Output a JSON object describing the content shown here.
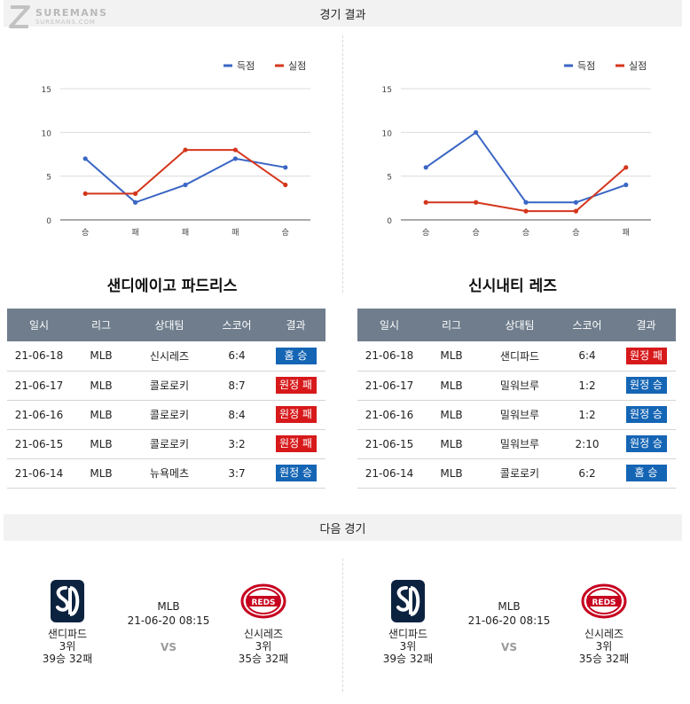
{
  "site": {
    "brand": "SUREMANS",
    "domain": "SUREMANS.COM"
  },
  "sections": {
    "results_title": "경기 결과",
    "next_title": "다음 경기"
  },
  "legend": {
    "scored": "득점",
    "conceded": "실점"
  },
  "colors": {
    "scored": "#3a66c4",
    "conceded": "#d4361c",
    "win": "#1565b5",
    "loss": "#d7191b",
    "header": "#6f7d8c"
  },
  "chart_data": [
    {
      "type": "line",
      "categories": [
        "승",
        "패",
        "패",
        "패",
        "승"
      ],
      "series": [
        {
          "name": "득점",
          "values": [
            7,
            2,
            4,
            7,
            6
          ]
        },
        {
          "name": "실점",
          "values": [
            3,
            3,
            8,
            8,
            4
          ]
        }
      ],
      "yticks": [
        0,
        5,
        10,
        15
      ],
      "ylim": [
        0,
        15
      ],
      "legend": "top-right",
      "grid": true
    },
    {
      "type": "line",
      "categories": [
        "승",
        "승",
        "승",
        "승",
        "패"
      ],
      "series": [
        {
          "name": "득점",
          "values": [
            6,
            10,
            2,
            2,
            4
          ]
        },
        {
          "name": "실점",
          "values": [
            2,
            2,
            1,
            1,
            6
          ]
        }
      ],
      "yticks": [
        0,
        5,
        10,
        15
      ],
      "ylim": [
        0,
        15
      ],
      "legend": "top-right",
      "grid": true
    }
  ],
  "table_headers": [
    "일시",
    "리그",
    "상대팀",
    "스코어",
    "결과"
  ],
  "teams": [
    {
      "name": "샌디에이고 파드리스",
      "results": [
        {
          "date": "21-06-18",
          "league": "MLB",
          "opponent": "신시레즈",
          "score": "6:4",
          "result": "홈 승",
          "outcome": "win"
        },
        {
          "date": "21-06-17",
          "league": "MLB",
          "opponent": "콜로로키",
          "score": "8:7",
          "result": "원정 패",
          "outcome": "loss"
        },
        {
          "date": "21-06-16",
          "league": "MLB",
          "opponent": "콜로로키",
          "score": "8:4",
          "result": "원정 패",
          "outcome": "loss"
        },
        {
          "date": "21-06-15",
          "league": "MLB",
          "opponent": "콜로로키",
          "score": "3:2",
          "result": "원정 패",
          "outcome": "loss"
        },
        {
          "date": "21-06-14",
          "league": "MLB",
          "opponent": "뉴욕메츠",
          "score": "3:7",
          "result": "원정 승",
          "outcome": "win"
        }
      ]
    },
    {
      "name": "신시내티 레즈",
      "results": [
        {
          "date": "21-06-18",
          "league": "MLB",
          "opponent": "샌디파드",
          "score": "6:4",
          "result": "원정 패",
          "outcome": "loss"
        },
        {
          "date": "21-06-17",
          "league": "MLB",
          "opponent": "밀워브루",
          "score": "1:2",
          "result": "원정 승",
          "outcome": "win"
        },
        {
          "date": "21-06-16",
          "league": "MLB",
          "opponent": "밀워브루",
          "score": "1:2",
          "result": "원정 승",
          "outcome": "win"
        },
        {
          "date": "21-06-15",
          "league": "MLB",
          "opponent": "밀워브루",
          "score": "2:10",
          "result": "원정 승",
          "outcome": "win"
        },
        {
          "date": "21-06-14",
          "league": "MLB",
          "opponent": "콜로로키",
          "score": "6:2",
          "result": "홈 승",
          "outcome": "win"
        }
      ]
    }
  ],
  "next_games": [
    {
      "league": "MLB",
      "datetime": "21-06-20 08:15",
      "vs": "VS",
      "home": {
        "name": "샌디파드",
        "rank": "3위",
        "record": "39승 32패",
        "logo": "padres-sd-logo"
      },
      "away": {
        "name": "신시레즈",
        "rank": "3위",
        "record": "35승 32패",
        "logo": "reds-logo",
        "logo_text": "REDS"
      }
    },
    {
      "league": "MLB",
      "datetime": "21-06-20 08:15",
      "vs": "VS",
      "home": {
        "name": "샌디파드",
        "rank": "3위",
        "record": "39승 32패",
        "logo": "padres-sd-logo"
      },
      "away": {
        "name": "신시레즈",
        "rank": "3위",
        "record": "35승 32패",
        "logo": "reds-logo",
        "logo_text": "REDS"
      }
    }
  ]
}
